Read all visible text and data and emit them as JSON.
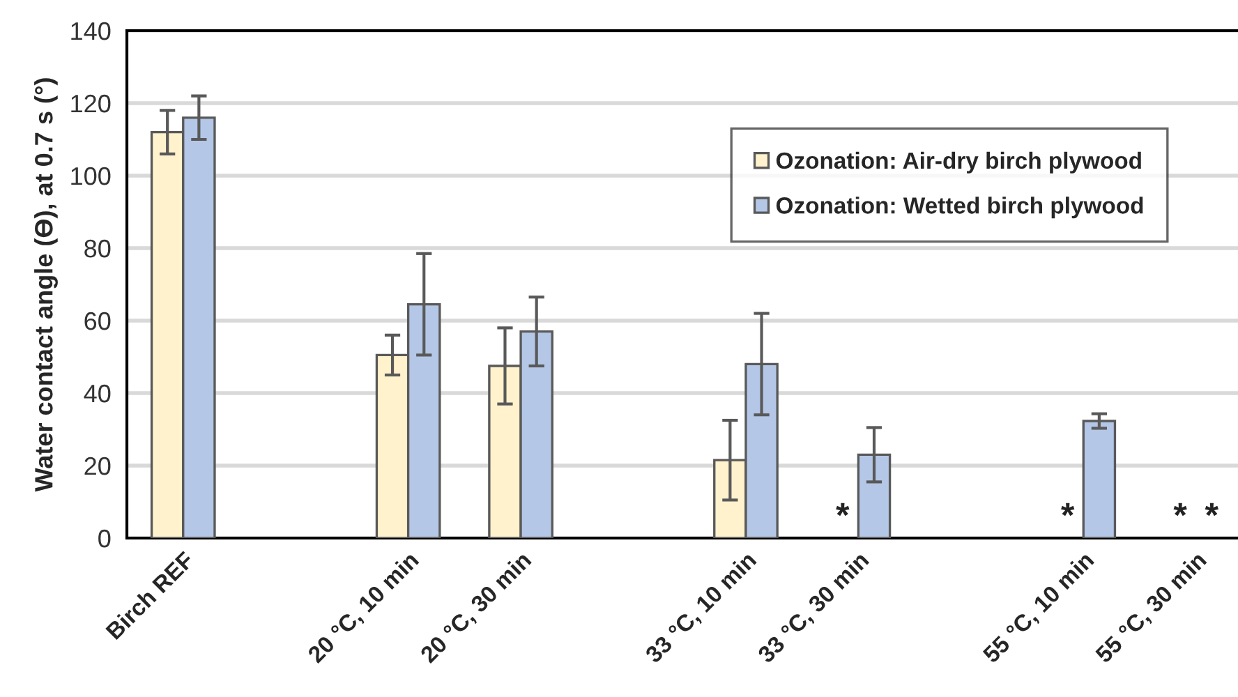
{
  "chart_data": {
    "type": "bar",
    "ylabel": "Water contact angle (ϴ), at 0.7 s (°)",
    "categories": [
      "Birch REF",
      null,
      "20 °C, 10 min",
      "20 °C, 30 min",
      null,
      "33 °C, 10 min",
      "33 °C, 30 min",
      null,
      "55 °C, 10 min",
      "55 °C, 30 min"
    ],
    "series": [
      {
        "name": "Ozonation: Air-dry birch plywood",
        "color": "#fff2cc",
        "values": [
          112,
          null,
          50.5,
          47.5,
          null,
          21.5,
          null,
          null,
          null,
          null
        ],
        "errors": [
          6,
          null,
          5.5,
          10.5,
          null,
          11,
          null,
          null,
          null,
          null
        ],
        "value_labels": [
          null,
          null,
          null,
          null,
          null,
          null,
          "*",
          null,
          "*",
          "*"
        ]
      },
      {
        "name": "Ozonation: Wetted birch plywood",
        "color": "#b4c7e7",
        "values": [
          116,
          null,
          64.5,
          57,
          null,
          48,
          23,
          null,
          32.3,
          null
        ],
        "errors": [
          6,
          null,
          14,
          9.5,
          null,
          14,
          7.5,
          null,
          2,
          null
        ],
        "value_labels": [
          null,
          null,
          null,
          null,
          null,
          null,
          null,
          null,
          null,
          "*"
        ]
      }
    ],
    "ylim": [
      0,
      140
    ],
    "yticks": [
      0,
      20,
      40,
      60,
      80,
      100,
      120,
      140
    ],
    "grid": "y",
    "legend": "top right"
  }
}
